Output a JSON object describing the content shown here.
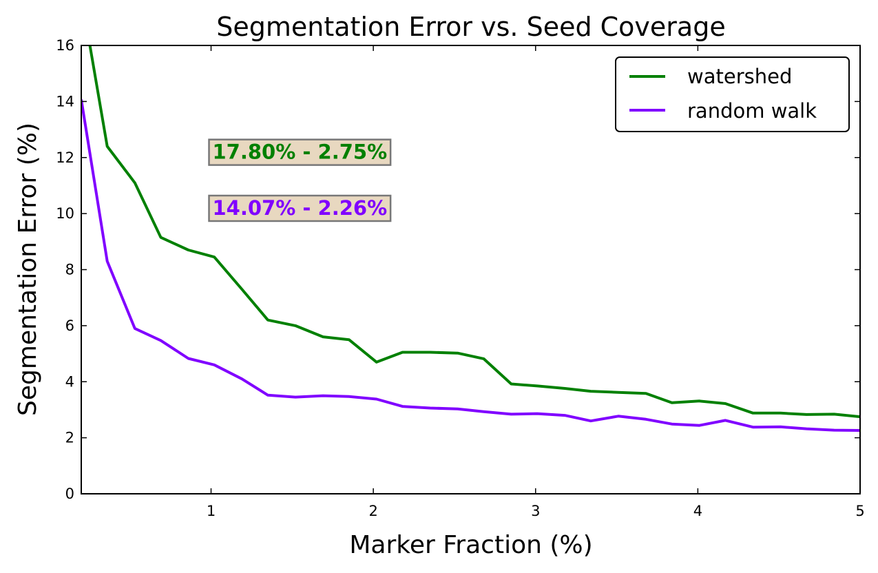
{
  "chart_data": {
    "type": "line",
    "title": "Segmentation Error vs. Seed Coverage",
    "xlabel": "Marker Fraction (%)",
    "ylabel": "Segmentation Error (%)",
    "xlim": [
      0.2,
      5.0
    ],
    "ylim": [
      0,
      16
    ],
    "xticks": [
      1,
      2,
      3,
      4,
      5
    ],
    "yticks": [
      0,
      2,
      4,
      6,
      8,
      10,
      12,
      14,
      16
    ],
    "grid": false,
    "legend_position": "top-right",
    "x": [
      0.2,
      0.36,
      0.53,
      0.69,
      0.86,
      1.02,
      1.19,
      1.35,
      1.52,
      1.69,
      1.85,
      2.02,
      2.18,
      2.35,
      2.52,
      2.68,
      2.85,
      3.01,
      3.18,
      3.34,
      3.51,
      3.68,
      3.84,
      4.01,
      4.17,
      4.34,
      4.51,
      4.67,
      4.84,
      5.0
    ],
    "series": [
      {
        "name": "watershed",
        "color": "#008000",
        "values": [
          17.8,
          12.4,
          11.1,
          9.15,
          8.7,
          8.45,
          7.3,
          6.2,
          6.0,
          5.6,
          5.5,
          4.7,
          5.05,
          5.05,
          5.02,
          4.82,
          3.92,
          3.85,
          3.76,
          3.66,
          3.62,
          3.58,
          3.25,
          3.31,
          3.22,
          2.88,
          2.88,
          2.83,
          2.84,
          2.75
        ]
      },
      {
        "name": "random walk",
        "color": "#8000ff",
        "values": [
          14.07,
          8.3,
          5.9,
          5.47,
          4.83,
          4.6,
          4.1,
          3.52,
          3.45,
          3.5,
          3.47,
          3.38,
          3.12,
          3.06,
          3.03,
          2.93,
          2.84,
          2.86,
          2.8,
          2.6,
          2.77,
          2.66,
          2.49,
          2.44,
          2.62,
          2.38,
          2.39,
          2.32,
          2.27,
          2.26
        ]
      }
    ],
    "annotations": [
      {
        "text": "17.80% - 2.75%",
        "color": "#008000",
        "x": 1.0,
        "y": 12.2
      },
      {
        "text": "14.07% - 2.26%",
        "color": "#8000ff",
        "x": 1.0,
        "y": 10.2
      }
    ],
    "style": {
      "annotation_box_fill": "#e8d8c0",
      "annotation_box_stroke": "#777777"
    }
  }
}
